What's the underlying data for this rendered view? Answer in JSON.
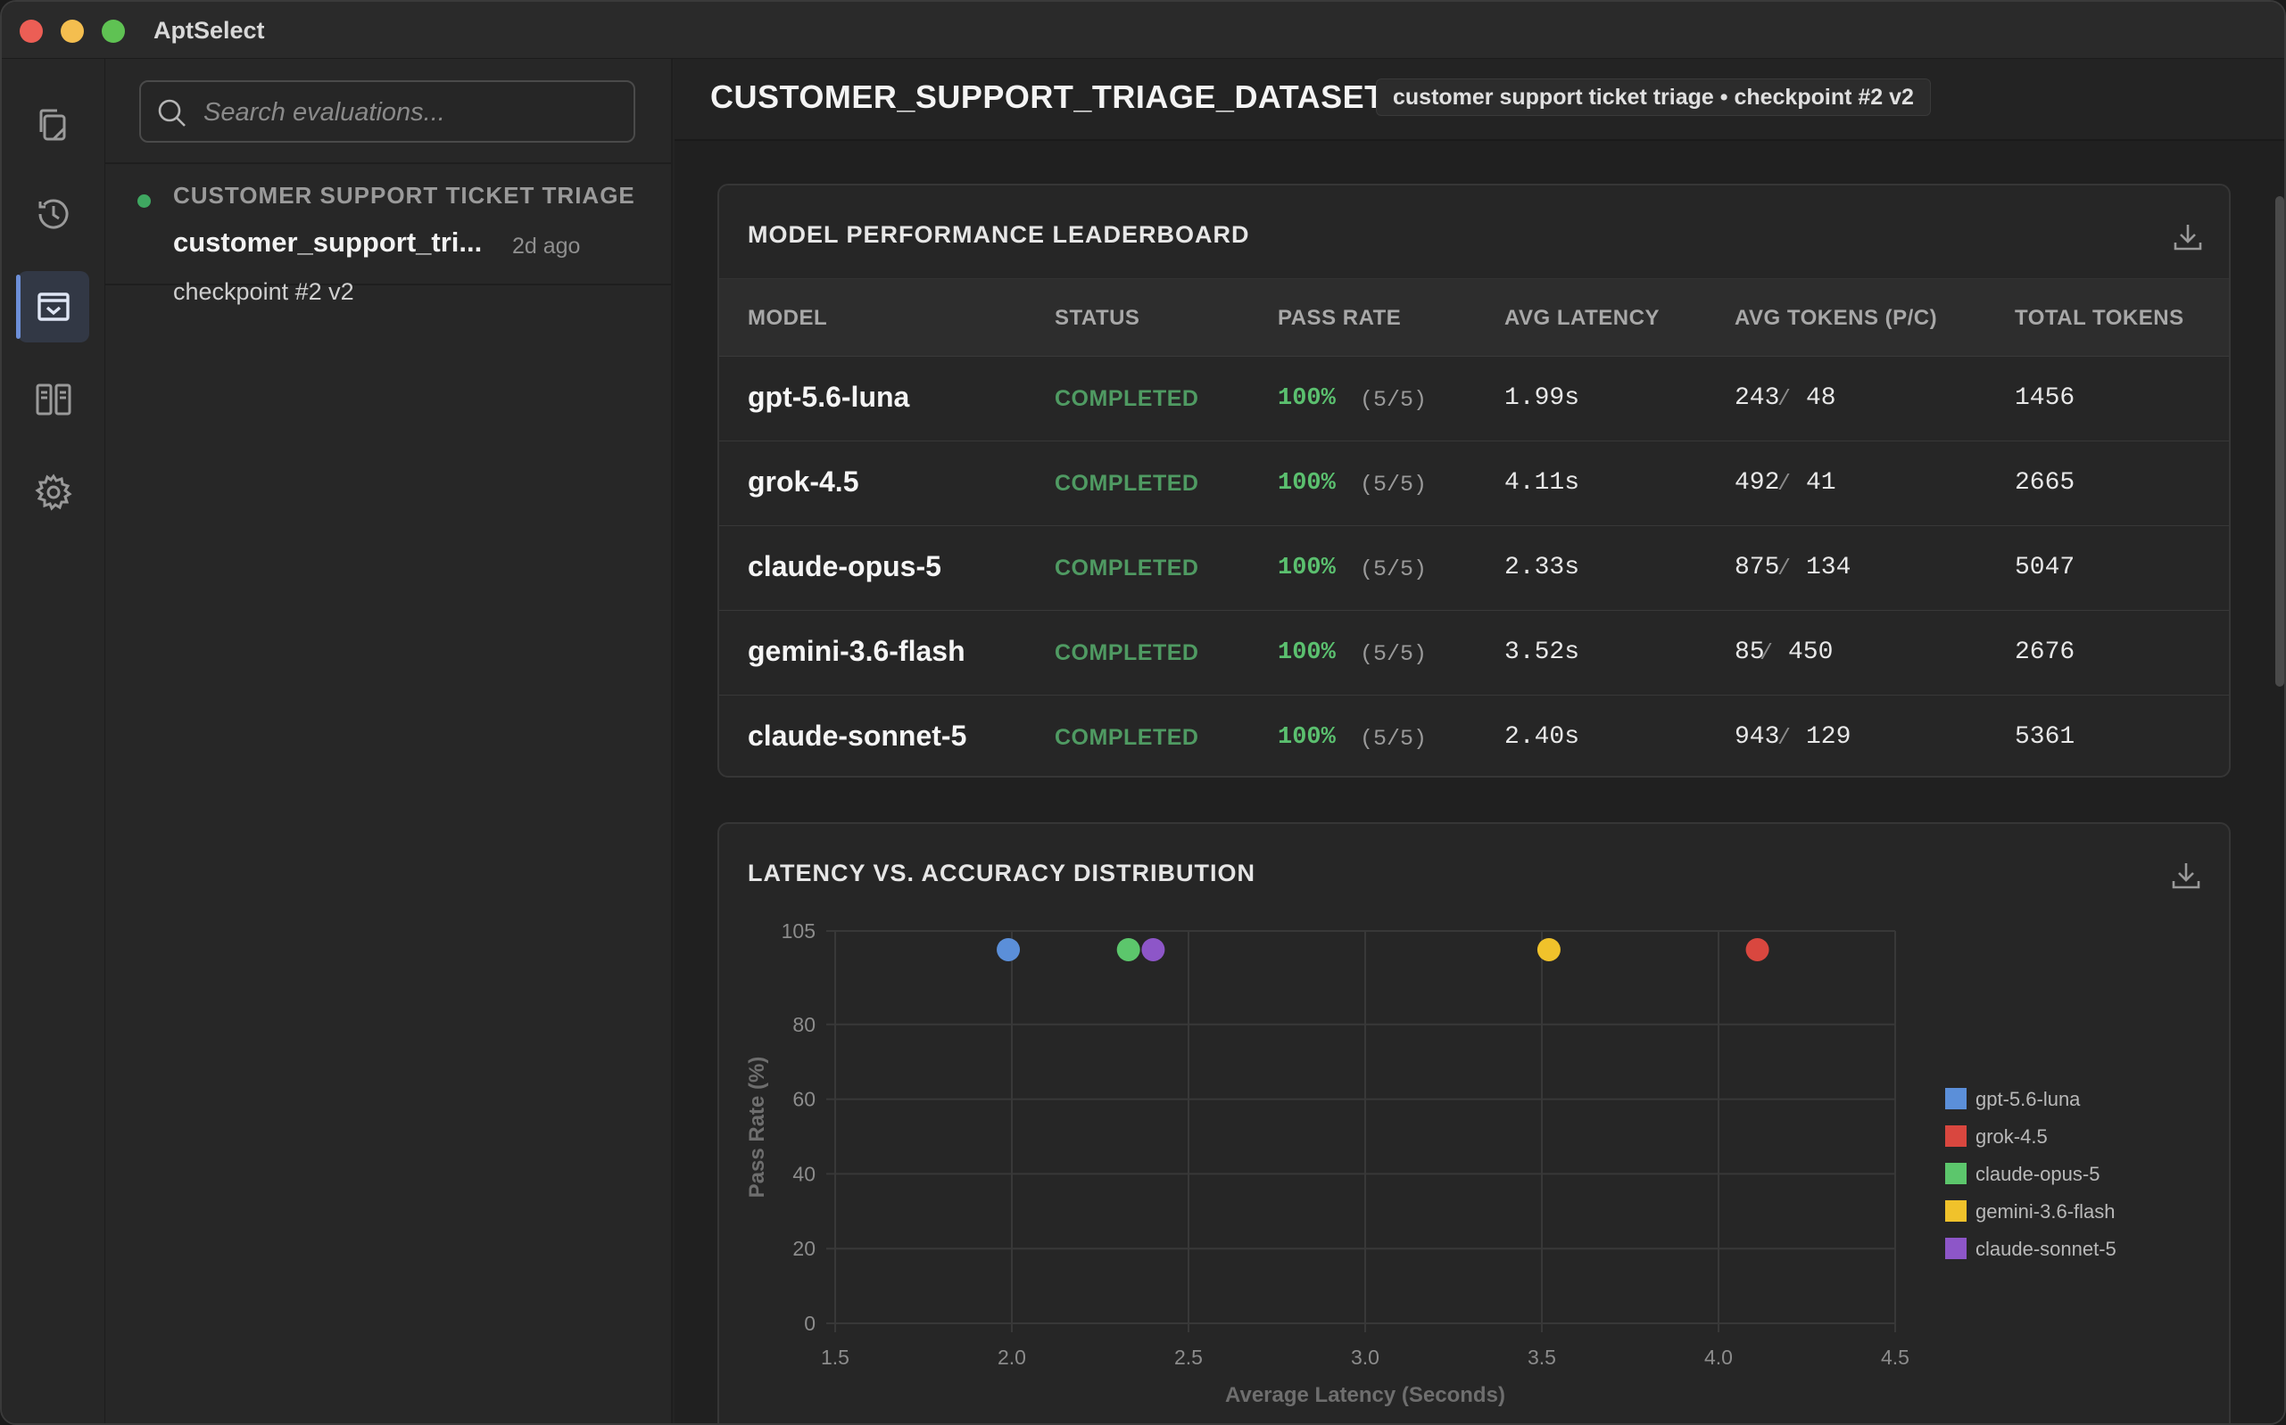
{
  "app": {
    "title": "AptSelect"
  },
  "rail": {
    "items": [
      {
        "name": "documents",
        "icon": "documents-icon",
        "active": false
      },
      {
        "name": "history",
        "icon": "history-icon",
        "active": false
      },
      {
        "name": "evaluations",
        "icon": "inbox-icon",
        "active": true
      },
      {
        "name": "compare",
        "icon": "compare-icon",
        "active": false
      },
      {
        "name": "settings",
        "icon": "gear-icon",
        "active": false
      }
    ]
  },
  "sidebar": {
    "search": {
      "placeholder": "Search evaluations..."
    },
    "group": {
      "title": "CUSTOMER SUPPORT TICKET TRIAGE",
      "item": {
        "name": "customer_support_tri...",
        "time": "2d ago",
        "checkpoint": "checkpoint #2 v2"
      }
    }
  },
  "header": {
    "title": "CUSTOMER_SUPPORT_TRIAGE_DATASET",
    "badge": "customer support ticket triage • checkpoint #2 v2"
  },
  "leaderboard": {
    "title": "MODEL PERFORMANCE LEADERBOARD",
    "columns": [
      "MODEL",
      "STATUS",
      "PASS RATE",
      "AVG LATENCY",
      "AVG TOKENS (P/C)",
      "TOTAL TOKENS"
    ],
    "rows": [
      {
        "model": "gpt-5.6-luna",
        "status": "COMPLETED",
        "pass_rate": "100%",
        "pass_count": "(5/5)",
        "latency": "1.99s",
        "prompt_tokens": "243",
        "completion_tokens": "48",
        "total_tokens": "1456"
      },
      {
        "model": "grok-4.5",
        "status": "COMPLETED",
        "pass_rate": "100%",
        "pass_count": "(5/5)",
        "latency": "4.11s",
        "prompt_tokens": "492",
        "completion_tokens": "41",
        "total_tokens": "2665"
      },
      {
        "model": "claude-opus-5",
        "status": "COMPLETED",
        "pass_rate": "100%",
        "pass_count": "(5/5)",
        "latency": "2.33s",
        "prompt_tokens": "875",
        "completion_tokens": "134",
        "total_tokens": "5047"
      },
      {
        "model": "gemini-3.6-flash",
        "status": "COMPLETED",
        "pass_rate": "100%",
        "pass_count": "(5/5)",
        "latency": "3.52s",
        "prompt_tokens": "85",
        "completion_tokens": "450",
        "total_tokens": "2676"
      },
      {
        "model": "claude-sonnet-5",
        "status": "COMPLETED",
        "pass_rate": "100%",
        "pass_count": "(5/5)",
        "latency": "2.40s",
        "prompt_tokens": "943",
        "completion_tokens": "129",
        "total_tokens": "5361"
      }
    ],
    "separator": "/"
  },
  "colors": {
    "status_completed": "#4f9a62",
    "pass_rate": "#5bc06f",
    "accent": "#6d8fd8"
  },
  "chart_data": {
    "type": "scatter",
    "title": "LATENCY VS. ACCURACY DISTRIBUTION",
    "xlabel": "Average Latency (Seconds)",
    "ylabel": "Pass Rate (%)",
    "xlim": [
      1.5,
      4.5
    ],
    "ylim": [
      0,
      105
    ],
    "xticks": [
      "1.5",
      "2.0",
      "2.5",
      "3.0",
      "3.5",
      "4.0",
      "4.5"
    ],
    "yticks": [
      "0",
      "20",
      "40",
      "60",
      "80",
      "105"
    ],
    "grid": true,
    "legend_position": "right",
    "series": [
      {
        "name": "gpt-5.6-luna",
        "color": "#5b8fd9",
        "x": 1.99,
        "y": 100
      },
      {
        "name": "grok-4.5",
        "color": "#d9473f",
        "x": 4.11,
        "y": 100
      },
      {
        "name": "claude-opus-5",
        "color": "#5cc66c",
        "x": 2.33,
        "y": 100
      },
      {
        "name": "gemini-3.6-flash",
        "color": "#f0c22b",
        "x": 3.52,
        "y": 100
      },
      {
        "name": "claude-sonnet-5",
        "color": "#8d56c8",
        "x": 2.4,
        "y": 100
      }
    ]
  }
}
